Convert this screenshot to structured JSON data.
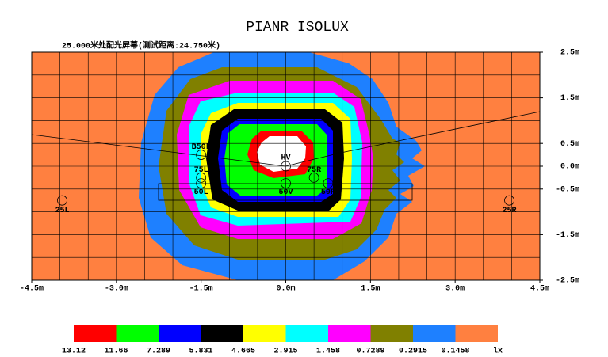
{
  "chart_data": {
    "type": "isolux",
    "title": "PIANR ISOLUX",
    "subtitle": "25.000米处配光屏幕(测试距离:24.750米)",
    "xlim": [
      -4.5,
      4.5
    ],
    "ylim": [
      -2.5,
      2.5
    ],
    "xticks": [
      {
        "value": -4.5,
        "label": "-4.5m"
      },
      {
        "value": -3.0,
        "label": "-3.0m"
      },
      {
        "value": -1.5,
        "label": "-1.5m"
      },
      {
        "value": 0,
        "label": "0.0m"
      },
      {
        "value": 1.5,
        "label": "1.5m"
      },
      {
        "value": 3.0,
        "label": "3.0m"
      },
      {
        "value": 4.5,
        "label": "4.5m"
      }
    ],
    "yticks": [
      {
        "value": 2.5,
        "label": "2.5m"
      },
      {
        "value": 1.5,
        "label": "1.5m"
      },
      {
        "value": 0.5,
        "label": "0.5m"
      },
      {
        "value": 0,
        "label": "0.0m"
      },
      {
        "value": -0.5,
        "label": "-0.5m"
      },
      {
        "value": -1.5,
        "label": "-1.5m"
      },
      {
        "value": -2.5,
        "label": "-2.5m"
      }
    ],
    "grid": true,
    "levels": [
      {
        "value": 13.12,
        "color": "#ff0000"
      },
      {
        "value": 11.66,
        "color": "#00ff00"
      },
      {
        "value": 7.289,
        "color": "#0000ff"
      },
      {
        "value": 5.831,
        "color": "#000000"
      },
      {
        "value": 4.665,
        "color": "#ffff00"
      },
      {
        "value": 2.915,
        "color": "#00ffff"
      },
      {
        "value": 1.458,
        "color": "#ff00ff"
      },
      {
        "value": 0.7289,
        "color": "#808000"
      },
      {
        "value": 0.2915,
        "color": "#1e80ff"
      },
      {
        "value": 0.1458,
        "color": "#ff8040"
      }
    ],
    "legend_unit": "lx",
    "points": [
      {
        "label": "HV",
        "x": 0,
        "y": 0
      },
      {
        "label": "B50L",
        "x": -1.5,
        "y": 0.25
      },
      {
        "label": "75L",
        "x": -1.5,
        "y": -0.25
      },
      {
        "label": "75R",
        "x": 0.5,
        "y": -0.25
      },
      {
        "label": "50L",
        "x": -1.5,
        "y": -0.375
      },
      {
        "label": "50V",
        "x": 0,
        "y": -0.375
      },
      {
        "label": "50R",
        "x": 0.75,
        "y": -0.375
      },
      {
        "label": "25L",
        "x": -3.96,
        "y": -0.75
      },
      {
        "label": "25R",
        "x": 3.96,
        "y": -0.75
      }
    ]
  }
}
